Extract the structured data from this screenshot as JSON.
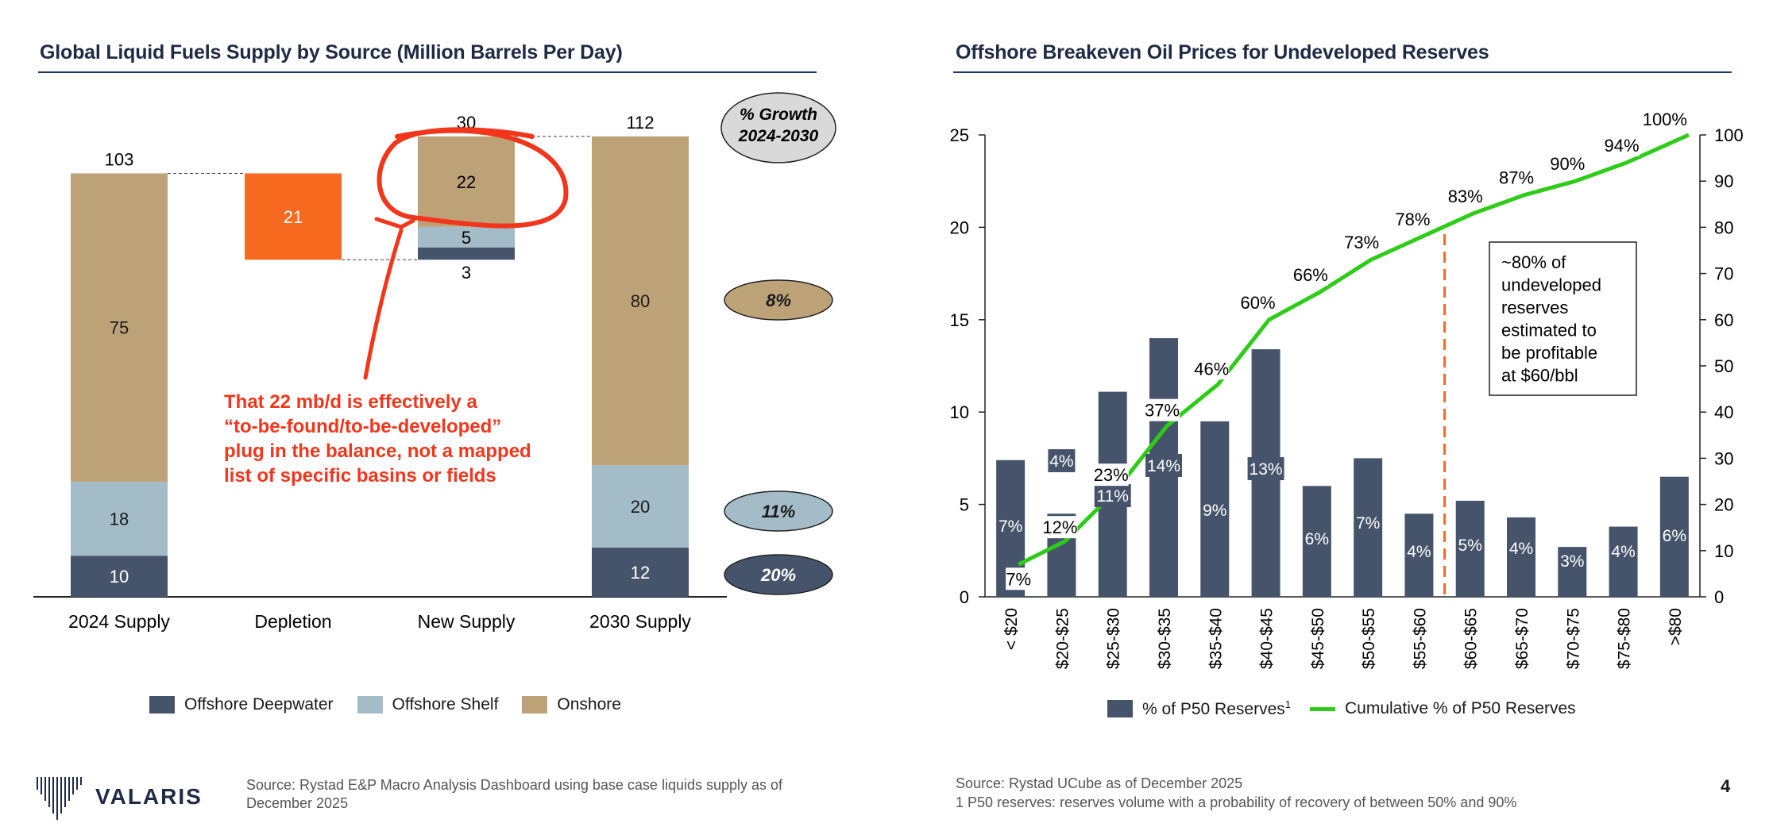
{
  "page_number": "4",
  "logo": {
    "text": "VALARIS"
  },
  "left": {
    "title": "Global Liquid Fuels Supply by Source (Million Barrels Per Day)",
    "source": "Source: Rystad E&P Macro Analysis Dashboard using base case liquids supply as of December 2025",
    "growth_header": "% Growth 2024-2030",
    "growth": [
      {
        "label": "8%",
        "series": "Onshore"
      },
      {
        "label": "11%",
        "series": "Offshore Shelf"
      },
      {
        "label": "20%",
        "series": "Offshore Deepwater"
      }
    ],
    "annotation": "That 22 mb/d is effectively a “to-be-found/to-be-developed” plug in the balance, not a mapped list of specific basins or fields",
    "legend": [
      "Offshore Deepwater",
      "Offshore Shelf",
      "Onshore"
    ],
    "colors": {
      "deepwater": "#46546b",
      "shelf": "#a3bcc8",
      "onshore": "#bda278",
      "depletion": "#f76a1f",
      "annotation": "#f2361c"
    }
  },
  "right": {
    "title": "Offshore Breakeven Oil Prices for Undeveloped Reserves",
    "source_line1": "Source: Rystad UCube as of December 2025",
    "source_line2": "1 P50 reserves: reserves volume with a probability of recovery of between 50% and 90%",
    "callout": "~80% of undeveloped reserves estimated to be profitable at $60/bbl",
    "legend_bar": "% of P50 Reserves",
    "legend_bar_sup": "1",
    "legend_line": "Cumulative % of P50 Reserves",
    "colors": {
      "bar": "#46546b",
      "line": "#2ecc18",
      "marker": "#f76a1f"
    }
  },
  "chart_data": [
    {
      "type": "bar",
      "subtype": "waterfall",
      "title": "Global Liquid Fuels Supply by Source (Million Barrels Per Day)",
      "categories": [
        "2024 Supply",
        "Depletion",
        "New Supply",
        "2030 Supply"
      ],
      "series": [
        {
          "name": "Offshore Deepwater",
          "values": [
            10,
            null,
            3,
            12
          ]
        },
        {
          "name": "Offshore Shelf",
          "values": [
            18,
            null,
            5,
            20
          ]
        },
        {
          "name": "Onshore",
          "values": [
            75,
            null,
            22,
            80
          ]
        }
      ],
      "depletion": 21,
      "totals": [
        103,
        null,
        30,
        112
      ],
      "ylim": [
        0,
        112
      ]
    },
    {
      "type": "bar",
      "title": "Offshore Breakeven Oil Prices for Undeveloped Reserves",
      "categories": [
        "< $20",
        "$20-$25",
        "$25-$30",
        "$30-$35",
        "$35-$40",
        "$40-$45",
        "$45-$50",
        "$50-$55",
        "$55-$60",
        "$60-$65",
        "$65-$70",
        "$70-$75",
        "$75-$80",
        ">$80"
      ],
      "series": [
        {
          "name": "% of P50 Reserves",
          "axis": "left",
          "values": [
            7.4,
            4.5,
            11.1,
            14.0,
            9.5,
            13.4,
            6.0,
            7.5,
            4.5,
            5.2,
            4.3,
            2.7,
            3.8,
            6.5
          ],
          "labels": [
            "7%",
            "4%",
            "11%",
            "14%",
            "9%",
            "13%",
            "6%",
            "7%",
            "4%",
            "5%",
            "4%",
            "3%",
            "4%",
            "6%"
          ]
        },
        {
          "name": "Cumulative % of P50 Reserves",
          "axis": "right",
          "type": "line",
          "values": [
            7,
            12,
            23,
            37,
            46,
            60,
            66,
            73,
            78,
            83,
            87,
            90,
            94,
            100
          ],
          "labels": [
            "7%",
            "12%",
            "23%",
            "37%",
            "46%",
            "60%",
            "66%",
            "73%",
            "78%",
            "83%",
            "87%",
            "90%",
            "94%",
            "100%"
          ]
        }
      ],
      "ylim": [
        0,
        25
      ],
      "y_ticks": [
        "0",
        "5",
        "10",
        "15",
        "20",
        "25"
      ],
      "y2lim": [
        0,
        100
      ],
      "y2_ticks": [
        "0",
        "10",
        "20",
        "30",
        "40",
        "50",
        "60",
        "70",
        "80",
        "90",
        "100"
      ],
      "reference_line": "$60"
    }
  ]
}
